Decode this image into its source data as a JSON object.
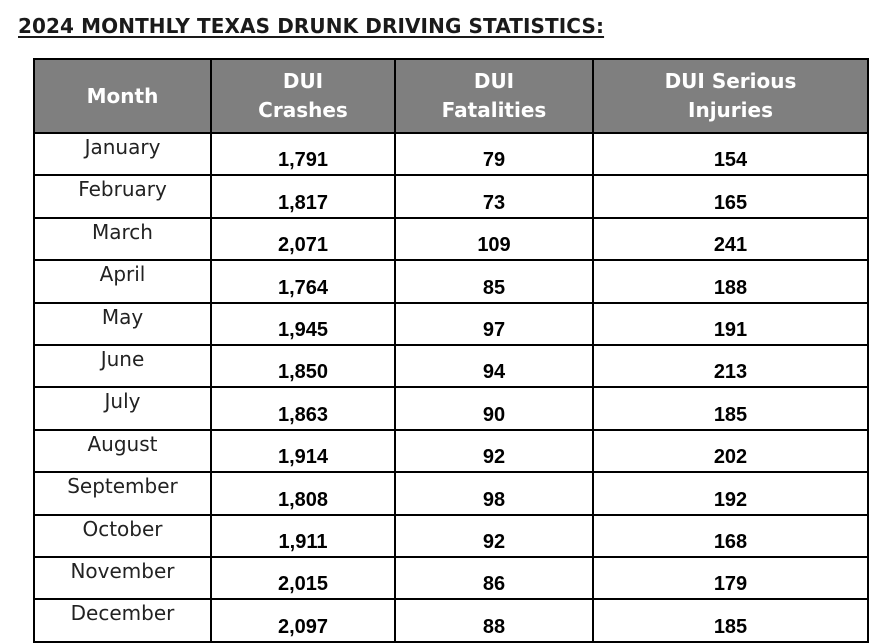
{
  "title": "2024 MONTHLY TEXAS DRUNK DRIVING STATISTICS:",
  "table": {
    "headers": {
      "month": "Month",
      "crashes_1": "DUI",
      "crashes_2": "Crashes",
      "fatalities_1": "DUI",
      "fatalities_2": "Fatalities",
      "injuries_1": "DUI Serious",
      "injuries_2": "Injuries"
    },
    "rows": [
      {
        "month": "January",
        "crashes": "1,791",
        "fatalities": "79",
        "injuries": "154"
      },
      {
        "month": "February",
        "crashes": "1,817",
        "fatalities": "73",
        "injuries": "165"
      },
      {
        "month": "March",
        "crashes": "2,071",
        "fatalities": "109",
        "injuries": "241"
      },
      {
        "month": "April",
        "crashes": "1,764",
        "fatalities": "85",
        "injuries": "188"
      },
      {
        "month": "May",
        "crashes": "1,945",
        "fatalities": "97",
        "injuries": "191"
      },
      {
        "month": "June",
        "crashes": "1,850",
        "fatalities": "94",
        "injuries": "213"
      },
      {
        "month": "July",
        "crashes": "1,863",
        "fatalities": "90",
        "injuries": "185"
      },
      {
        "month": "August",
        "crashes": "1,914",
        "fatalities": "92",
        "injuries": "202"
      },
      {
        "month": "September",
        "crashes": "1,808",
        "fatalities": "98",
        "injuries": "192"
      },
      {
        "month": "October",
        "crashes": "1,911",
        "fatalities": "92",
        "injuries": "168"
      },
      {
        "month": "November",
        "crashes": "2,015",
        "fatalities": "86",
        "injuries": "179"
      },
      {
        "month": "December",
        "crashes": "2,097",
        "fatalities": "88",
        "injuries": "185"
      }
    ]
  },
  "colors": {
    "header_bg": "#7f7f7f",
    "header_text": "#ffffff",
    "border": "#000000"
  }
}
